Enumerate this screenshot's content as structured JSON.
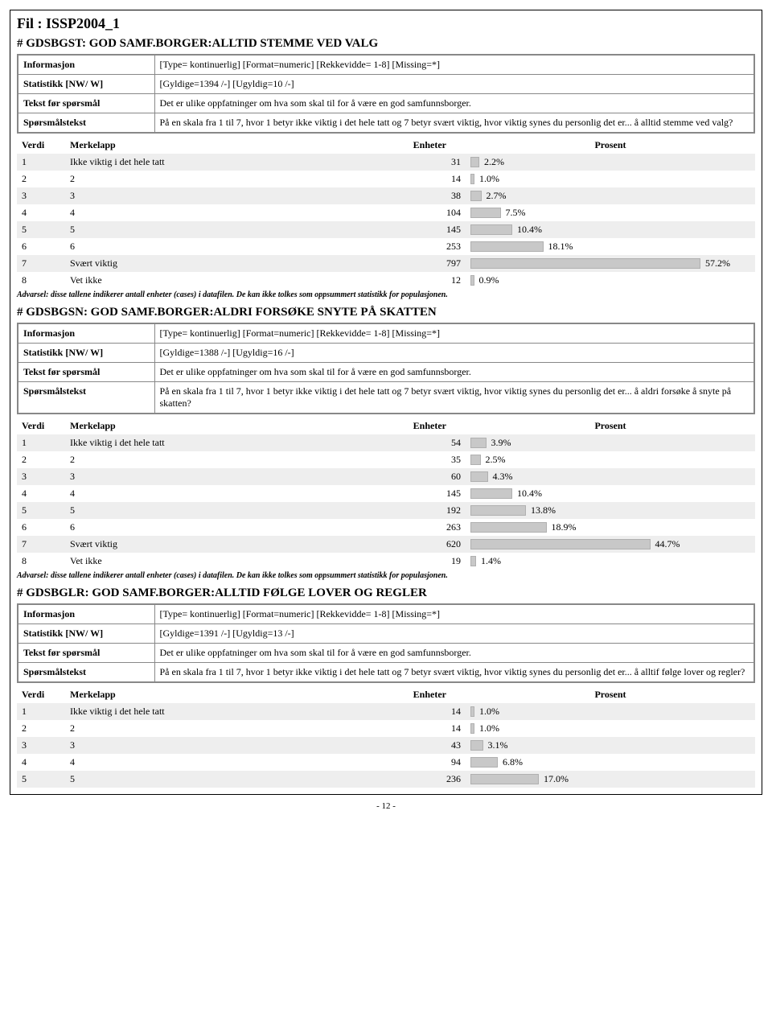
{
  "fileTitle": "Fil : ISSP2004_1",
  "pagenum": "- 12 -",
  "warning": "Advarsel: disse tallene indikerer antall enheter (cases) i datafilen. De kan ikke tolkes som oppsummert statistikk for populasjonen.",
  "headers": {
    "verdi": "Verdi",
    "merkelapp": "Merkelapp",
    "enheter": "Enheter",
    "prosent": "Prosent"
  },
  "infoLabels": {
    "informasjon": "Informasjon",
    "statistikk": "Statistikk [NW/ W]",
    "tekstFor": "Tekst før spørsmål",
    "sporsmal": "Spørsmålstekst"
  },
  "barMaxPct": 60,
  "barMaxWidth": 300,
  "vars": [
    {
      "title": "# GDSBGST: GOD SAMF.BORGER:ALLTID STEMME VED VALG",
      "info": {
        "informasjon": "[Type= kontinuerlig] [Format=numeric] [Rekkevidde= 1-8] [Missing=*]",
        "statistikk": "[Gyldige=1394 /-] [Ugyldig=10 /-]",
        "tekstFor": "Det er ulike oppfatninger om hva som skal til for å være en god samfunnsborger.",
        "sporsmal": "På en skala fra 1 til 7, hvor 1 betyr ikke viktig i det hele tatt og 7 betyr svært viktig, hvor viktig synes du personlig det er... å alltid stemme ved valg?"
      },
      "rows": [
        {
          "verdi": "1",
          "merkelapp": "Ikke viktig i det hele tatt",
          "enheter": "31",
          "pct": 2.2,
          "pctLabel": "2.2%"
        },
        {
          "verdi": "2",
          "merkelapp": "2",
          "enheter": "14",
          "pct": 1.0,
          "pctLabel": "1.0%"
        },
        {
          "verdi": "3",
          "merkelapp": "3",
          "enheter": "38",
          "pct": 2.7,
          "pctLabel": "2.7%"
        },
        {
          "verdi": "4",
          "merkelapp": "4",
          "enheter": "104",
          "pct": 7.5,
          "pctLabel": "7.5%"
        },
        {
          "verdi": "5",
          "merkelapp": "5",
          "enheter": "145",
          "pct": 10.4,
          "pctLabel": "10.4%"
        },
        {
          "verdi": "6",
          "merkelapp": "6",
          "enheter": "253",
          "pct": 18.1,
          "pctLabel": "18.1%"
        },
        {
          "verdi": "7",
          "merkelapp": "Svært viktig",
          "enheter": "797",
          "pct": 57.2,
          "pctLabel": "57.2%"
        },
        {
          "verdi": "8",
          "merkelapp": "Vet ikke",
          "enheter": "12",
          "pct": 0.9,
          "pctLabel": "0.9%"
        }
      ]
    },
    {
      "title": "# GDSBGSN: GOD SAMF.BORGER:ALDRI FORSØKE SNYTE PÅ SKATTEN",
      "info": {
        "informasjon": "[Type= kontinuerlig] [Format=numeric] [Rekkevidde= 1-8] [Missing=*]",
        "statistikk": "[Gyldige=1388 /-] [Ugyldig=16 /-]",
        "tekstFor": "Det er ulike oppfatninger om hva som skal til for å være en god samfunnsborger.",
        "sporsmal": "På en skala fra 1 til 7, hvor 1 betyr ikke viktig i det hele tatt og 7 betyr svært viktig, hvor viktig synes du personlig det er... å aldri forsøke å snyte på skatten?"
      },
      "rows": [
        {
          "verdi": "1",
          "merkelapp": "Ikke viktig i det hele tatt",
          "enheter": "54",
          "pct": 3.9,
          "pctLabel": "3.9%"
        },
        {
          "verdi": "2",
          "merkelapp": "2",
          "enheter": "35",
          "pct": 2.5,
          "pctLabel": "2.5%"
        },
        {
          "verdi": "3",
          "merkelapp": "3",
          "enheter": "60",
          "pct": 4.3,
          "pctLabel": "4.3%"
        },
        {
          "verdi": "4",
          "merkelapp": "4",
          "enheter": "145",
          "pct": 10.4,
          "pctLabel": "10.4%"
        },
        {
          "verdi": "5",
          "merkelapp": "5",
          "enheter": "192",
          "pct": 13.8,
          "pctLabel": "13.8%"
        },
        {
          "verdi": "6",
          "merkelapp": "6",
          "enheter": "263",
          "pct": 18.9,
          "pctLabel": "18.9%"
        },
        {
          "verdi": "7",
          "merkelapp": "Svært viktig",
          "enheter": "620",
          "pct": 44.7,
          "pctLabel": "44.7%"
        },
        {
          "verdi": "8",
          "merkelapp": "Vet ikke",
          "enheter": "19",
          "pct": 1.4,
          "pctLabel": "1.4%"
        }
      ]
    },
    {
      "title": "# GDSBGLR: GOD SAMF.BORGER:ALLTID FØLGE LOVER OG REGLER",
      "info": {
        "informasjon": "[Type= kontinuerlig] [Format=numeric] [Rekkevidde= 1-8] [Missing=*]",
        "statistikk": "[Gyldige=1391 /-] [Ugyldig=13 /-]",
        "tekstFor": "Det er ulike oppfatninger om hva som skal til for å være en god samfunnsborger.",
        "sporsmal": "På en skala fra 1 til 7, hvor 1 betyr ikke viktig i det hele tatt og 7 betyr svært viktig, hvor viktig synes du personlig det er... å alltif følge lover og regler?"
      },
      "rows": [
        {
          "verdi": "1",
          "merkelapp": "Ikke viktig i det hele tatt",
          "enheter": "14",
          "pct": 1.0,
          "pctLabel": "1.0%"
        },
        {
          "verdi": "2",
          "merkelapp": "2",
          "enheter": "14",
          "pct": 1.0,
          "pctLabel": "1.0%"
        },
        {
          "verdi": "3",
          "merkelapp": "3",
          "enheter": "43",
          "pct": 3.1,
          "pctLabel": "3.1%"
        },
        {
          "verdi": "4",
          "merkelapp": "4",
          "enheter": "94",
          "pct": 6.8,
          "pctLabel": "6.8%"
        },
        {
          "verdi": "5",
          "merkelapp": "5",
          "enheter": "236",
          "pct": 17.0,
          "pctLabel": "17.0%"
        }
      ],
      "noWarning": true
    }
  ]
}
